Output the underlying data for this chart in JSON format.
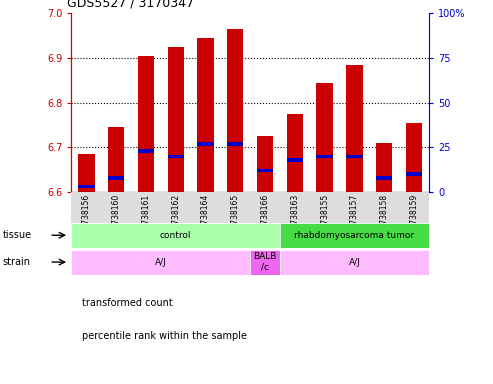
{
  "title": "GDS5527 / 3170347",
  "samples": [
    "GSM738156",
    "GSM738160",
    "GSM738161",
    "GSM738162",
    "GSM738164",
    "GSM738165",
    "GSM738166",
    "GSM738163",
    "GSM738155",
    "GSM738157",
    "GSM738158",
    "GSM738159"
  ],
  "transformed_count": [
    6.685,
    6.745,
    6.905,
    6.925,
    6.945,
    6.965,
    6.725,
    6.775,
    6.845,
    6.885,
    6.71,
    6.755
  ],
  "percentile_rank": [
    3,
    8,
    23,
    20,
    27,
    27,
    12,
    18,
    20,
    20,
    8,
    10
  ],
  "ymin": 6.6,
  "ymax": 7.0,
  "yticks": [
    6.6,
    6.7,
    6.8,
    6.9,
    7.0
  ],
  "right_yticks": [
    0,
    25,
    50,
    75,
    100
  ],
  "bar_color": "#cc0000",
  "pct_color": "#0000cc",
  "tissue_groups": [
    {
      "label": "control",
      "start": 0,
      "end": 7,
      "color": "#aaffaa"
    },
    {
      "label": "rhabdomyosarcoma tumor",
      "start": 7,
      "end": 12,
      "color": "#44dd44"
    }
  ],
  "strain_groups": [
    {
      "label": "A/J",
      "start": 0,
      "end": 6,
      "color": "#ffbbff"
    },
    {
      "label": "BALB\n/c",
      "start": 6,
      "end": 7,
      "color": "#ee66ee"
    },
    {
      "label": "A/J",
      "start": 7,
      "end": 12,
      "color": "#ffbbff"
    }
  ],
  "legend_items": [
    {
      "label": "transformed count",
      "color": "#cc0000"
    },
    {
      "label": "percentile rank within the sample",
      "color": "#0000cc"
    }
  ],
  "tissue_label": "tissue",
  "strain_label": "strain",
  "left_axis_color": "#cc0000",
  "right_axis_color": "#0000cc"
}
